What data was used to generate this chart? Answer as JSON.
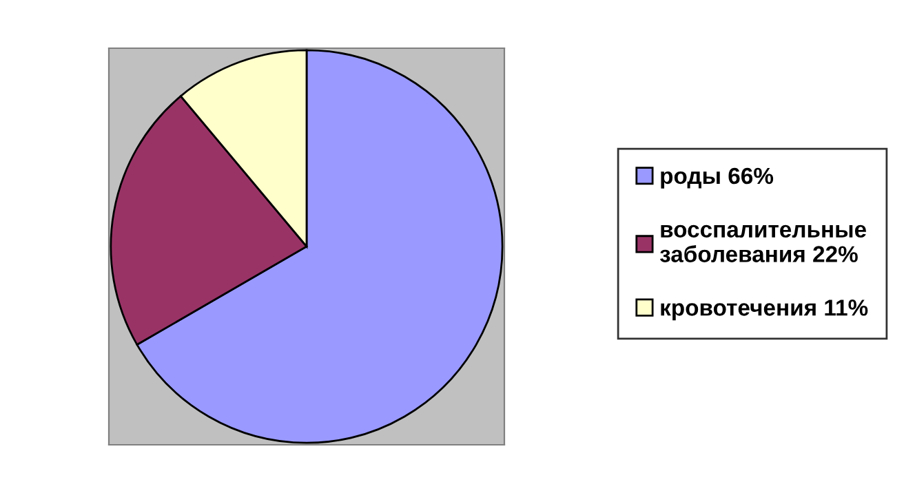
{
  "chart_data": {
    "type": "pie",
    "categories": [
      "роды 66%",
      "восспалительные\nзаболевания 22%",
      "кровотечения 11%"
    ],
    "values": [
      66,
      22,
      11
    ],
    "colors": [
      "#9999ff",
      "#993366",
      "#ffffcc"
    ],
    "legend": "right"
  }
}
